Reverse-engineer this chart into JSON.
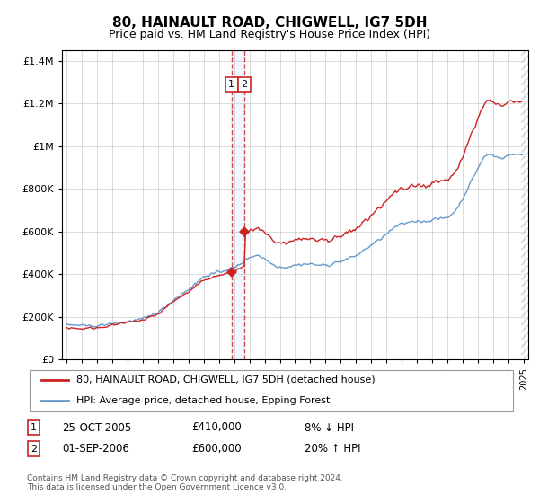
{
  "title": "80, HAINAULT ROAD, CHIGWELL, IG7 5DH",
  "subtitle": "Price paid vs. HM Land Registry's House Price Index (HPI)",
  "legend_line1": "80, HAINAULT ROAD, CHIGWELL, IG7 5DH (detached house)",
  "legend_line2": "HPI: Average price, detached house, Epping Forest",
  "footnote": "Contains HM Land Registry data © Crown copyright and database right 2024.\nThis data is licensed under the Open Government Licence v3.0.",
  "transaction1_date": "25-OCT-2005",
  "transaction1_price": "£410,000",
  "transaction1_hpi": "8% ↓ HPI",
  "transaction2_date": "01-SEP-2006",
  "transaction2_price": "£600,000",
  "transaction2_hpi": "20% ↑ HPI",
  "red_color": "#cc2222",
  "blue_color": "#6699cc",
  "grid_color": "#cccccc",
  "bg_color": "#ffffff",
  "transaction1_x": 2005.83,
  "transaction1_y": 410000,
  "transaction2_x": 2006.67,
  "transaction2_y": 600000,
  "ylim": [
    0,
    1450000
  ],
  "xlim": [
    1994.7,
    2025.3
  ]
}
